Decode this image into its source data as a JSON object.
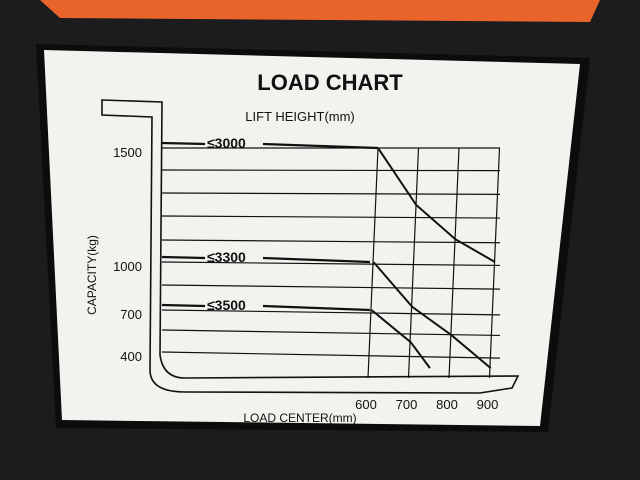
{
  "chart_data": {
    "type": "line",
    "title": "LOAD CHART",
    "legend_title": "LIFT HEIGHT(mm)",
    "xlabel": "LOAD CENTER(mm)",
    "ylabel": "CAPACITY(kg)",
    "x_ticks": [
      "600",
      "700",
      "800",
      "900"
    ],
    "y_ticks": [
      "1500",
      "1000",
      "700",
      "400"
    ],
    "grid": true,
    "series": [
      {
        "name": "≤3000",
        "x": [
          600,
          700,
          800,
          900
        ],
        "y": [
          1500,
          1250,
          1100,
          1000
        ]
      },
      {
        "name": "≤3300",
        "x": [
          600,
          700,
          800,
          900
        ],
        "y": [
          1000,
          720,
          520,
          330
        ]
      },
      {
        "name": "≤3500",
        "x": [
          600,
          700,
          750
        ],
        "y": [
          700,
          470,
          330
        ]
      }
    ]
  },
  "colors": {
    "sign": "#f2f2ee",
    "ink": "#111111",
    "frame": "#1c1c1e",
    "accent": "#e8642a"
  }
}
